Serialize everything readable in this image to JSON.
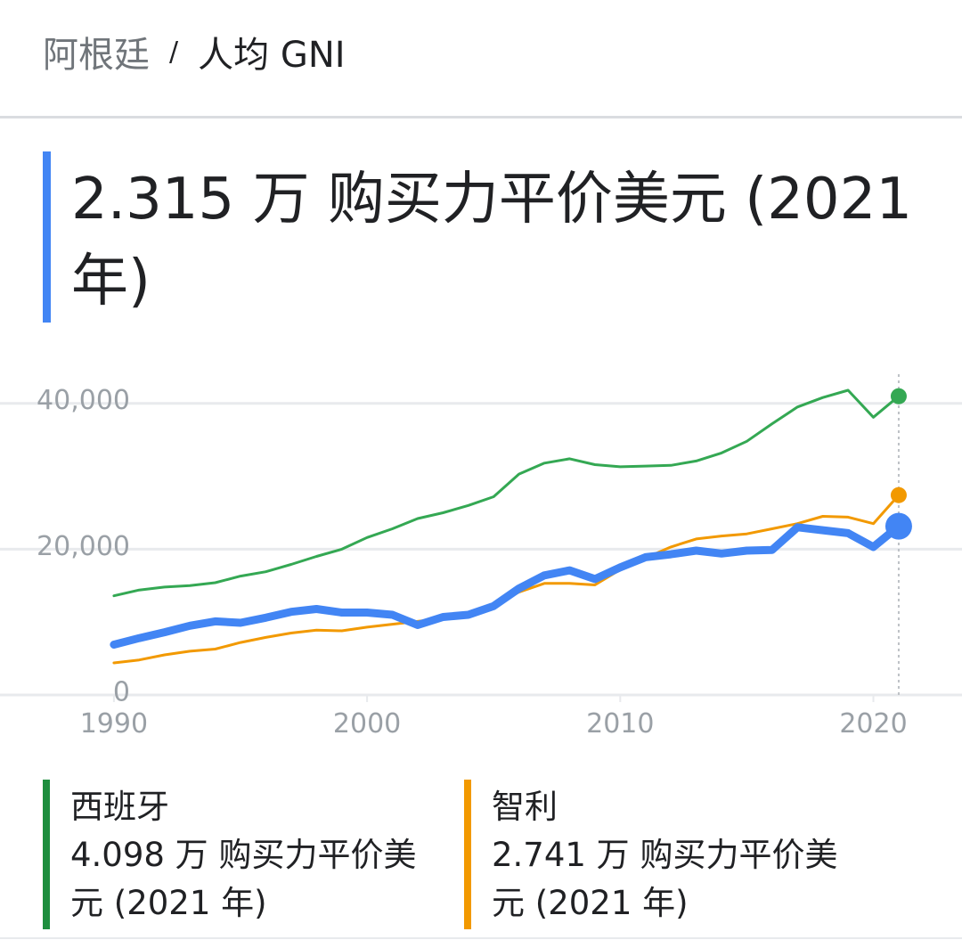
{
  "breadcrumb": {
    "country": "阿根廷",
    "separator": "/",
    "metric": "人均 GNI"
  },
  "headline": {
    "value_text": "2.315 万 购买力平价美元 (2021 年)"
  },
  "colors": {
    "argentina": "#4285f4",
    "spain": "#34a853",
    "chile": "#f29900",
    "grid": "#e8eaed",
    "axis_text": "#9aa0a6"
  },
  "legend": [
    {
      "name": "西班牙",
      "value_text": "4.098 万 购买力平价美元 (2021 年)",
      "color": "#1e8e3e"
    },
    {
      "name": "智利",
      "value_text": "2.741 万 购买力平价美元 (2021 年)",
      "color": "#f29900"
    }
  ],
  "chart_data": {
    "type": "line",
    "x": [
      1990,
      1991,
      1992,
      1993,
      1994,
      1995,
      1996,
      1997,
      1998,
      1999,
      2000,
      2001,
      2002,
      2003,
      2004,
      2005,
      2006,
      2007,
      2008,
      2009,
      2010,
      2011,
      2012,
      2013,
      2014,
      2015,
      2016,
      2017,
      2018,
      2019,
      2020,
      2021
    ],
    "xticks": [
      1990,
      2000,
      2010,
      2020
    ],
    "yticks": [
      0,
      20000,
      40000
    ],
    "ytick_labels": [
      "0",
      "20,000",
      "40,000"
    ],
    "ylim": [
      0,
      44000
    ],
    "xlim": [
      1985.5,
      2023.5
    ],
    "grid": true,
    "series": [
      {
        "name": "西班牙",
        "color": "#34a853",
        "values": [
          13600,
          14400,
          14800,
          15000,
          15400,
          16300,
          16900,
          17900,
          19000,
          20000,
          21600,
          22800,
          24200,
          25000,
          26000,
          27200,
          30300,
          31800,
          32400,
          31600,
          31300,
          31400,
          31500,
          32100,
          33200,
          34800,
          37200,
          39500,
          40800,
          41800,
          38100,
          40980
        ]
      },
      {
        "name": "智利",
        "color": "#f29900",
        "values": [
          4400,
          4800,
          5500,
          6000,
          6300,
          7200,
          7900,
          8500,
          8900,
          8800,
          9300,
          9700,
          10100,
          10500,
          11200,
          12300,
          14100,
          15300,
          15300,
          15100,
          17200,
          18800,
          20300,
          21400,
          21800,
          22100,
          22800,
          23500,
          24500,
          24400,
          23500,
          27410
        ]
      },
      {
        "name": "阿根廷",
        "color": "#4285f4",
        "values": [
          6900,
          7800,
          8600,
          9500,
          10100,
          9900,
          10600,
          11400,
          11800,
          11300,
          11300,
          11000,
          9600,
          10700,
          11000,
          12200,
          14600,
          16400,
          17100,
          15900,
          17500,
          18900,
          19300,
          19800,
          19400,
          19800,
          19900,
          23000,
          22600,
          22200,
          20300,
          23150
        ]
      }
    ]
  }
}
